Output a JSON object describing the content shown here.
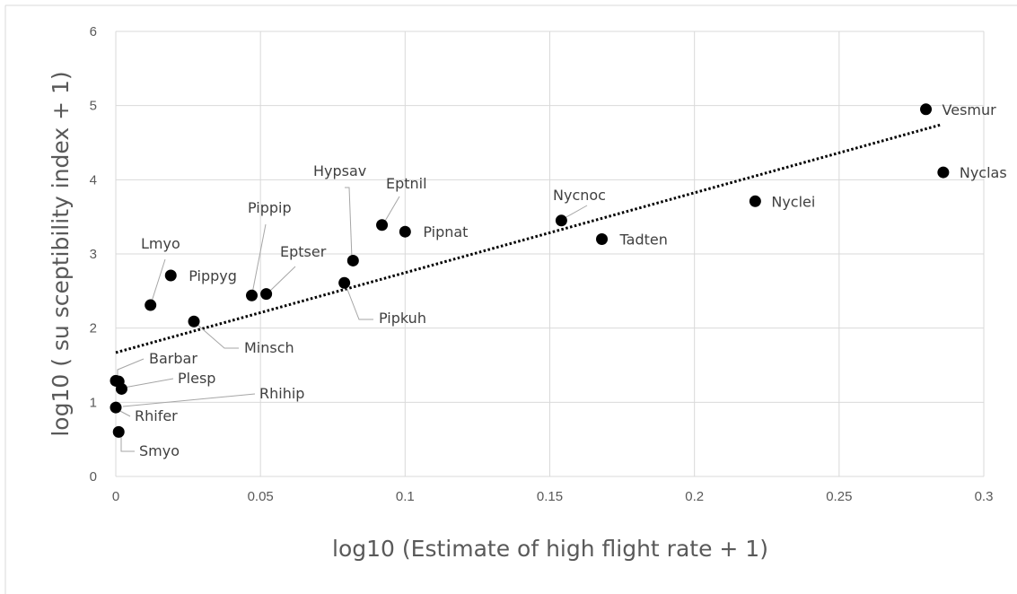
{
  "chart_data": {
    "type": "scatter",
    "title": "",
    "xlabel": "log10 (Estimate of high flight rate + 1)",
    "ylabel": "log10 ( su sceptibility index + 1)",
    "xlim": [
      0,
      0.3
    ],
    "ylim": [
      0,
      6
    ],
    "x_ticks": [
      "0",
      "0.05",
      "0.1",
      "0.15",
      "0.2",
      "0.25",
      "0.3"
    ],
    "y_ticks": [
      "0",
      "1",
      "2",
      "3",
      "4",
      "5",
      "6"
    ],
    "grid": true,
    "legend": "none",
    "marker_color": "#000000",
    "trendline": {
      "style": "dotted",
      "kind": "linear",
      "x": [
        0,
        0.285
      ],
      "y": [
        1.67,
        4.74
      ]
    },
    "points": [
      {
        "label": "Vesmur",
        "x": 0.28,
        "y": 4.95
      },
      {
        "label": "Nyclas",
        "x": 0.286,
        "y": 4.1
      },
      {
        "label": "Nyclei",
        "x": 0.221,
        "y": 3.71
      },
      {
        "label": "Tadten",
        "x": 0.168,
        "y": 3.2
      },
      {
        "label": "Nycnoc",
        "x": 0.154,
        "y": 3.45
      },
      {
        "label": "Pipnat",
        "x": 0.1,
        "y": 3.3
      },
      {
        "label": "Eptnil",
        "x": 0.092,
        "y": 3.39
      },
      {
        "label": "Hypsav",
        "x": 0.082,
        "y": 2.91
      },
      {
        "label": "Pipkuh",
        "x": 0.079,
        "y": 2.61
      },
      {
        "label": "Eptser",
        "x": 0.052,
        "y": 2.46
      },
      {
        "label": "Pippip",
        "x": 0.047,
        "y": 2.44
      },
      {
        "label": "Minsch",
        "x": 0.027,
        "y": 2.09
      },
      {
        "label": "Pippyg",
        "x": 0.019,
        "y": 2.71
      },
      {
        "label": "Lmyo",
        "x": 0.012,
        "y": 2.31
      },
      {
        "label": "Barbar",
        "x": 0.0,
        "y": 1.29
      },
      {
        "label": "Plesp",
        "x": 0.002,
        "y": 1.18
      },
      {
        "label": "Rhihip",
        "x": 0.001,
        "y": 1.28
      },
      {
        "label": "Rhifer",
        "x": 0.0,
        "y": 0.93
      },
      {
        "label": "Smyo",
        "x": 0.001,
        "y": 0.6
      }
    ]
  }
}
